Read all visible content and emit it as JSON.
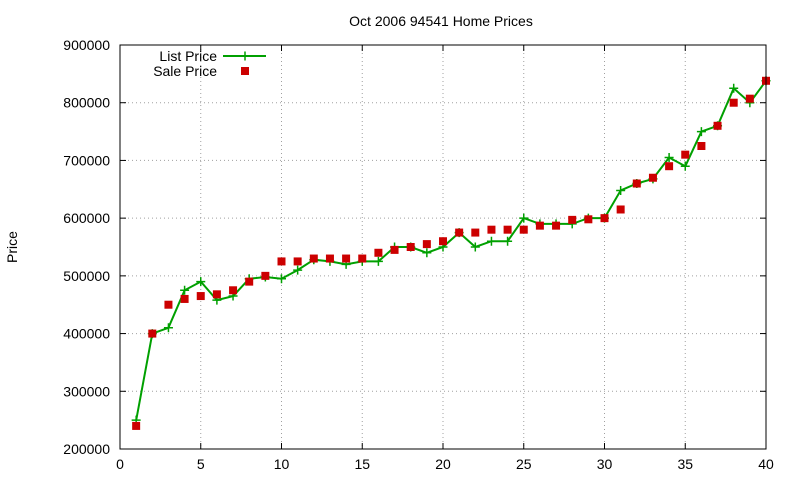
{
  "chart_data": {
    "type": "line",
    "title": "Oct 2006 94541 Home Prices",
    "xlabel": "",
    "ylabel": "Price",
    "xlim": [
      0,
      40
    ],
    "ylim": [
      200000,
      900000
    ],
    "xticks": [
      0,
      5,
      10,
      15,
      20,
      25,
      30,
      35,
      40
    ],
    "yticks": [
      200000,
      300000,
      400000,
      500000,
      600000,
      700000,
      800000,
      900000
    ],
    "grid": true,
    "legend_position": "top-left",
    "series": [
      {
        "name": "List Price",
        "style": "line+cross",
        "color": "#00a000",
        "x": [
          1,
          2,
          3,
          4,
          5,
          6,
          7,
          8,
          9,
          10,
          11,
          12,
          13,
          14,
          15,
          16,
          17,
          18,
          19,
          20,
          21,
          22,
          23,
          24,
          25,
          26,
          27,
          28,
          29,
          30,
          31,
          32,
          33,
          34,
          35,
          36,
          37,
          38,
          39,
          40
        ],
        "y": [
          250000,
          400000,
          410000,
          475000,
          490000,
          458000,
          465000,
          495000,
          498000,
          495000,
          510000,
          528000,
          525000,
          520000,
          525000,
          525000,
          550000,
          550000,
          540000,
          550000,
          575000,
          550000,
          560000,
          560000,
          600000,
          590000,
          590000,
          590000,
          600000,
          600000,
          648000,
          660000,
          668000,
          705000,
          690000,
          750000,
          760000,
          825000,
          800000,
          838000
        ]
      },
      {
        "name": "Sale Price",
        "style": "square",
        "color": "#cc0000",
        "x": [
          1,
          2,
          3,
          4,
          5,
          6,
          7,
          8,
          9,
          10,
          11,
          12,
          13,
          14,
          15,
          16,
          17,
          18,
          19,
          20,
          21,
          22,
          23,
          24,
          25,
          26,
          27,
          28,
          29,
          30,
          31,
          32,
          33,
          34,
          35,
          36,
          37,
          38,
          39,
          40
        ],
        "y": [
          240000,
          400000,
          450000,
          460000,
          465000,
          468000,
          475000,
          490000,
          500000,
          525000,
          525000,
          530000,
          530000,
          530000,
          530000,
          540000,
          545000,
          550000,
          555000,
          560000,
          575000,
          575000,
          580000,
          580000,
          580000,
          587000,
          587000,
          597000,
          598000,
          600000,
          615000,
          660000,
          670000,
          690000,
          710000,
          725000,
          760000,
          800000,
          807000,
          838000
        ]
      }
    ]
  }
}
